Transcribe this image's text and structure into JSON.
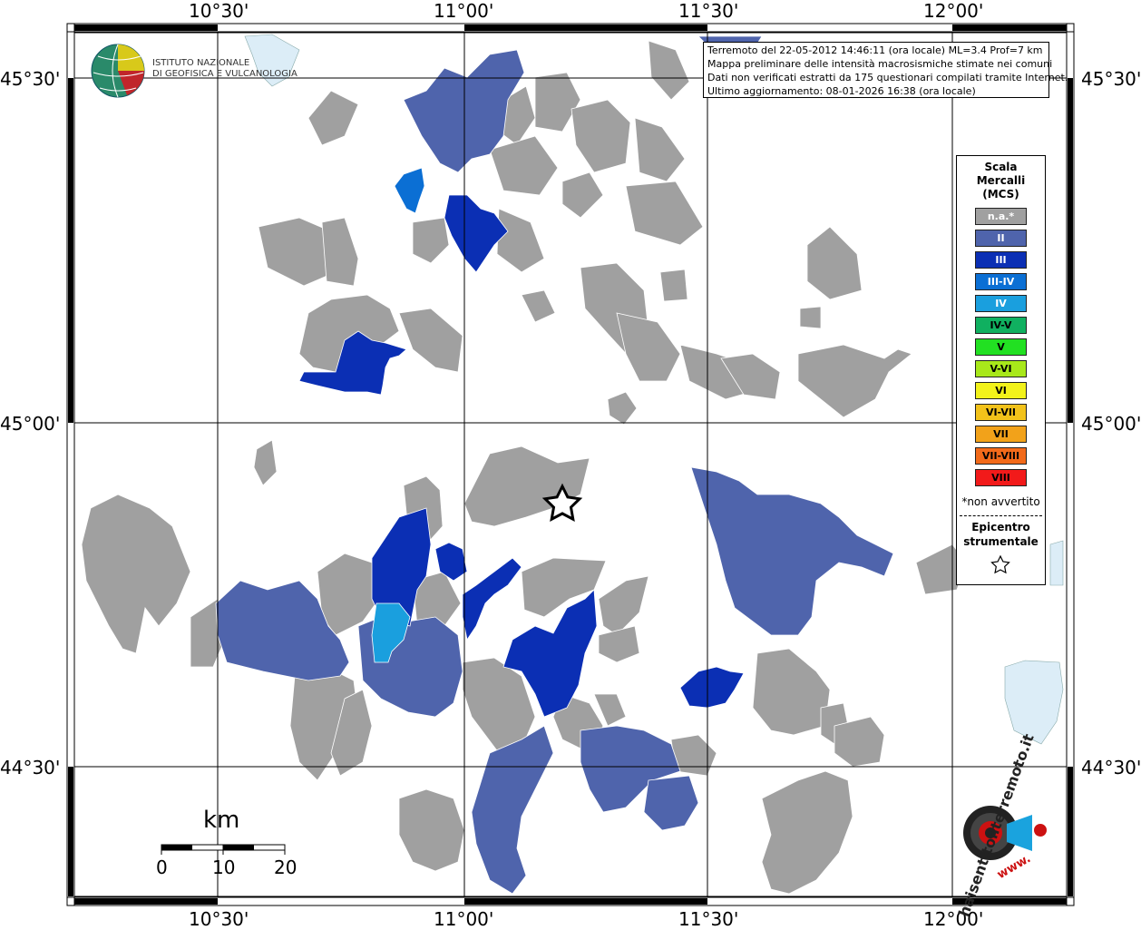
{
  "map": {
    "lon_labels": [
      "10°30'",
      "11°00'",
      "11°30'",
      "12°00'"
    ],
    "lat_labels": [
      "45°30'",
      "45°00'",
      "44°30'"
    ],
    "info_lines": [
      "Terremoto del 22-05-2012 14:46:11 (ora locale) ML=3.4 Prof=7 km",
      "Mappa preliminare delle intensità macrosismiche stimate nei comuni",
      "Dati non verificati estratti da 175 questionari compilati tramite Internet.",
      "Ultimo aggiornamento: 08-01-2026 16:38 (ora locale)"
    ],
    "logo_ingv": {
      "line1": "ISTITUTO NAZIONALE",
      "line2": "DI GEOFISICA E VULCANOLOGIA"
    },
    "logo_hsit": {
      "text": "haisentitoilterremoto.it",
      "url": "www."
    },
    "scale": {
      "title": "km",
      "ticks": [
        "0",
        "10",
        "20"
      ]
    },
    "legend": {
      "title_lines": [
        "Scala",
        "Mercalli",
        "(MCS)"
      ],
      "items": [
        {
          "label": "n.a.*",
          "color": "#a0a0a0",
          "text_color": "#ffffff"
        },
        {
          "label": "II",
          "color": "#4f64ac",
          "text_color": "#ffffff"
        },
        {
          "label": "III",
          "color": "#0b2fb4",
          "text_color": "#ffffff"
        },
        {
          "label": "III-IV",
          "color": "#0b6fd4",
          "text_color": "#ffffff"
        },
        {
          "label": "IV",
          "color": "#1a9fde",
          "text_color": "#ffffff"
        },
        {
          "label": "IV-V",
          "color": "#10b060",
          "text_color": "#000000"
        },
        {
          "label": "V",
          "color": "#22e022",
          "text_color": "#000000"
        },
        {
          "label": "V-VI",
          "color": "#a8e81a",
          "text_color": "#000000"
        },
        {
          "label": "VI",
          "color": "#f2f21a",
          "text_color": "#000000"
        },
        {
          "label": "VI-VII",
          "color": "#f2c21a",
          "text_color": "#000000"
        },
        {
          "label": "VII",
          "color": "#f2a21a",
          "text_color": "#000000"
        },
        {
          "label": "VII-VIII",
          "color": "#f26a1a",
          "text_color": "#000000"
        },
        {
          "label": "VIII",
          "color": "#f21a1a",
          "text_color": "#000000"
        }
      ],
      "note": "*non avvertito",
      "epicenter_lines": [
        "Epicentro",
        "strumentale"
      ]
    },
    "colors": {
      "water": "#dcedf7",
      "frame": "#000000"
    }
  }
}
